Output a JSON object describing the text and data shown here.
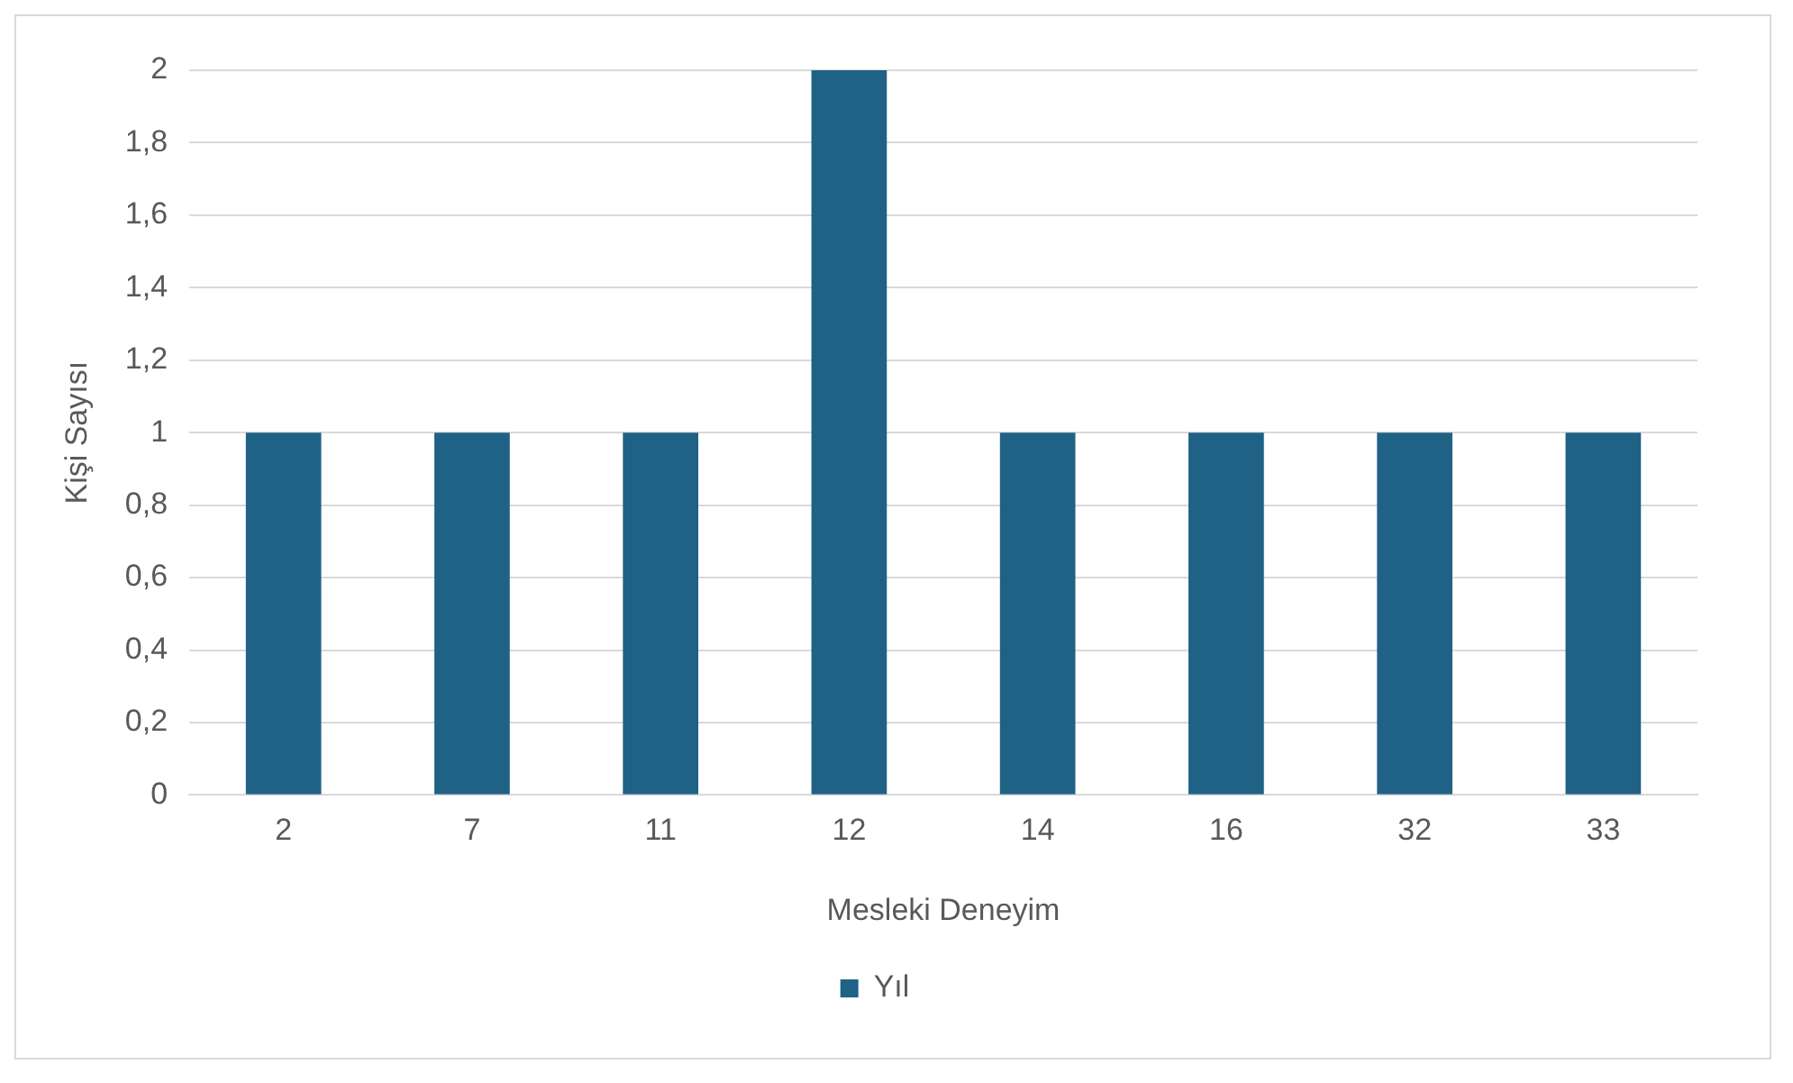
{
  "chart_data": {
    "type": "bar",
    "xlabel": "Mesleki Deneyim",
    "ylabel": "Kişi Sayısı",
    "categories": [
      "2",
      "7",
      "11",
      "12",
      "14",
      "16",
      "32",
      "33"
    ],
    "series": [
      {
        "name": "Yıl",
        "color": "#1f6285",
        "values": [
          1,
          1,
          1,
          2,
          1,
          1,
          1,
          1
        ]
      }
    ],
    "ylim": [
      0,
      2
    ],
    "yticks": [
      0,
      {
        "value": 0.2,
        "label": "0,2"
      },
      {
        "value": 0.4,
        "label": "0,4"
      },
      {
        "value": 0.6,
        "label": "0,6"
      },
      {
        "value": 0.8,
        "label": "0,8"
      },
      1,
      {
        "value": 1.2,
        "label": "1,2"
      },
      {
        "value": 1.4,
        "label": "1,4"
      },
      {
        "value": 1.6,
        "label": "1,6"
      },
      {
        "value": 1.8,
        "label": "1,8"
      },
      2
    ],
    "grid": "y",
    "legend": "bottom"
  }
}
